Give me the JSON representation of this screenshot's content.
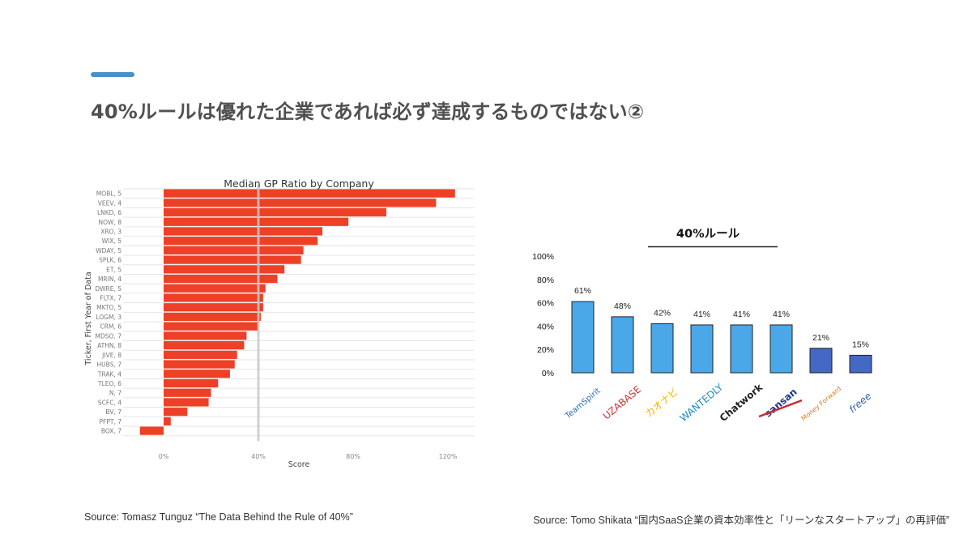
{
  "slide": {
    "title": "40%ルールは優れた企業であれば必ず達成するものではない②",
    "accent_color": "#4a90c8",
    "source_left": "Source: Tomasz Tunguz “The Data Behind the Rule of 40%”",
    "source_right": "Source: Tomo Shikata “国内SaaS企業の資本効率性と「リーンなスタートアップ」の再評価”"
  },
  "chart_data": [
    {
      "type": "bar",
      "orientation": "horizontal",
      "title": "Median GP Ratio by Company",
      "xlabel": "Score",
      "ylabel": "Ticker, First Year of Data",
      "xlim": [
        -10,
        128
      ],
      "xticks": [
        0,
        40,
        80,
        120
      ],
      "xtick_labels": [
        "0%",
        "40%",
        "80%",
        "120%"
      ],
      "reference_line": 40,
      "bar_color": "#ee4026",
      "grid": true,
      "categories": [
        "MOBL, 5",
        "VEEV, 4",
        "LNKD, 6",
        "NOW, 8",
        "XRO, 3",
        "WIX, 5",
        "WDAY, 5",
        "SPLK, 6",
        "ET, 5",
        "MRIN, 4",
        "DWRE, 5",
        "FLTX, 7",
        "MKTO, 5",
        "LOGM, 3",
        "CRM, 6",
        "MDSO, 7",
        "ATHN, 8",
        "JIVE, 8",
        "HUBS, 7",
        "TRAK, 4",
        "TLEO, 6",
        "N, 7",
        "SCFC, 4",
        "BV, 7",
        "PFPT, 7",
        "BOX, 7"
      ],
      "values": [
        123,
        115,
        94,
        78,
        67,
        65,
        59,
        58,
        51,
        48,
        43,
        42,
        42,
        41,
        40,
        35,
        34,
        31,
        30,
        28,
        23,
        20,
        19,
        10,
        3,
        -10
      ]
    },
    {
      "type": "bar",
      "title": "40%ルール",
      "xlabel": "",
      "ylabel": "",
      "ylim": [
        0,
        100
      ],
      "yticks": [
        0,
        20,
        40,
        60,
        80,
        100
      ],
      "ytick_labels": [
        "0%",
        "20%",
        "40%",
        "60%",
        "80%",
        "100%"
      ],
      "grid": false,
      "categories": [
        "TeamSpirit",
        "UZABASE",
        "カオナビ",
        "WANTEDLY",
        "Chatwork",
        "sansan",
        "Money Forward",
        "freee"
      ],
      "values": [
        61,
        48,
        42,
        41,
        41,
        41,
        21,
        15
      ],
      "value_labels": [
        "61%",
        "48%",
        "42%",
        "41%",
        "41%",
        "41%",
        "21%",
        "15%"
      ],
      "bar_colors": [
        "#4aa8e8",
        "#4aa8e8",
        "#4aa8e8",
        "#4aa8e8",
        "#4aa8e8",
        "#4aa8e8",
        "#4468c4",
        "#4468c4"
      ],
      "logo_colors": [
        "#2a6cb0",
        "#cc3333",
        "#f0b400",
        "#1a8bc8",
        "#222222",
        "#1a3a8a",
        "#e07a1a",
        "#3366aa"
      ]
    }
  ]
}
